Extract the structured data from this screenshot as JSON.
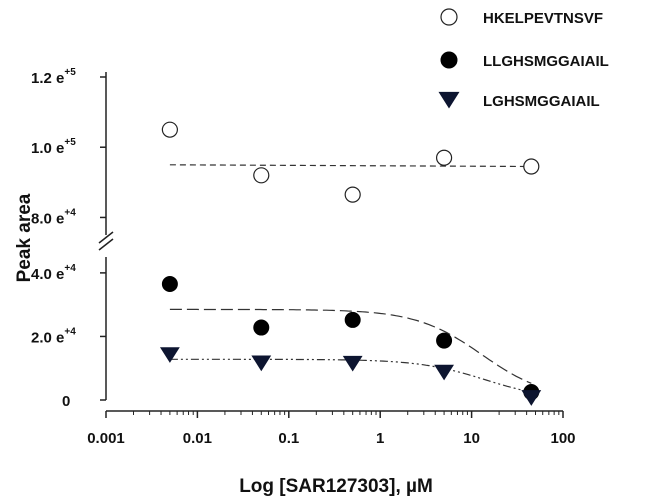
{
  "chart_data": {
    "type": "scatter",
    "xlabel": "Log [SAR127303], µM",
    "ylabel": "Peak area",
    "x_scale": "log",
    "xlim": [
      0.001,
      100
    ],
    "x_ticks": [
      "0.001",
      "0.01",
      "0.1",
      "1",
      "10",
      "100"
    ],
    "y_axis_break": [
      45000,
      75000
    ],
    "ylim": [
      0,
      120000
    ],
    "y_ticks": [
      {
        "value": 0,
        "base": "0",
        "exp": ""
      },
      {
        "value": 20000,
        "base": "2.0 e",
        "exp": "+4"
      },
      {
        "value": 40000,
        "base": "4.0 e",
        "exp": "+4"
      },
      {
        "value": 80000,
        "base": "8.0 e",
        "exp": "+4"
      },
      {
        "value": 100000,
        "base": "1.0 e",
        "exp": "+5"
      },
      {
        "value": 120000,
        "base": "1.2 e",
        "exp": "+5"
      }
    ],
    "legend_position": "top-right",
    "grid": false,
    "series": [
      {
        "name": "HKELPEVTNSVF",
        "marker": "open-circle",
        "color": "#111111",
        "x": [
          0.005,
          0.05,
          0.5,
          5,
          45
        ],
        "y": [
          105000,
          92000,
          86500,
          97000,
          94500
        ],
        "fit": {
          "style": "dashed",
          "x": [
            0.005,
            45
          ],
          "y": [
            95000,
            94500
          ]
        }
      },
      {
        "name": "LLGHSMGGAIAIL",
        "marker": "filled-circle",
        "color": "#000000",
        "x": [
          0.005,
          0.05,
          0.5,
          5,
          45
        ],
        "y": [
          36500,
          22800,
          25200,
          18700,
          2500
        ],
        "fit": {
          "style": "long-dash",
          "top": 28500,
          "bottom": 0,
          "ic50": 13,
          "hill": 1.2
        }
      },
      {
        "name": "LGHSMGGAIAIL",
        "marker": "filled-triangle-down",
        "color": "#0d1530",
        "x": [
          0.005,
          0.05,
          0.5,
          5,
          45
        ],
        "y": [
          14200,
          11600,
          11500,
          8700,
          700
        ],
        "fit": {
          "style": "dash-dot-dot",
          "top": 12800,
          "bottom": 0,
          "ic50": 14,
          "hill": 1.2
        }
      }
    ]
  }
}
